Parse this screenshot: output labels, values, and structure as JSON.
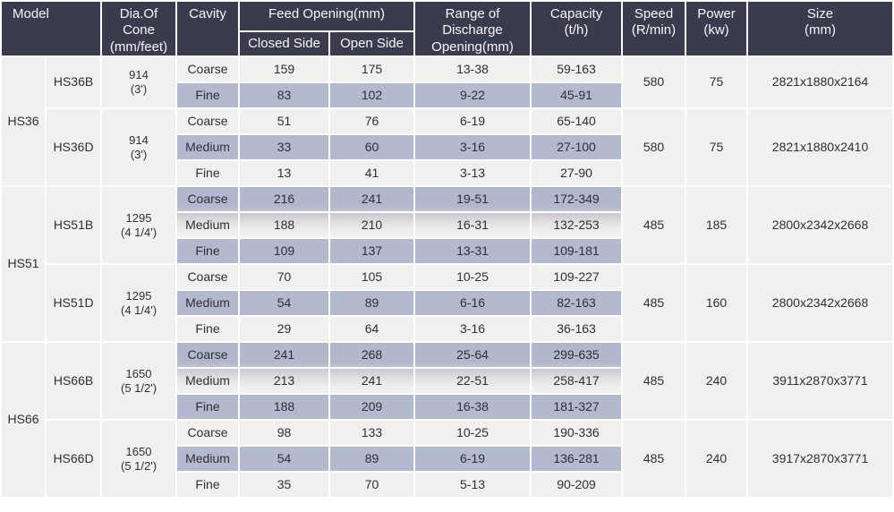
{
  "colors": {
    "header_bg": "#3b3b4e",
    "header_text": "#f7f7f7",
    "row_light": "#f0f0ee",
    "row_highlight": "#b3b9ce",
    "body_text": "#2f2f35"
  },
  "header": {
    "model": "Model",
    "dia": "Dia.Of\nCone\n(mm/feet)",
    "cavity": "Cavity",
    "feed_opening": "Feed Opening(mm)",
    "closed_side": "Closed Side",
    "open_side": "Open Side",
    "range": "Range of\nDischarge\nOpening(mm)",
    "capacity": "Capacity\n(t/h)",
    "speed": "Speed\n(R/min)",
    "power": "Power\n(kw)",
    "size": "Size\n(mm)"
  },
  "groups": [
    {
      "model": "HS36",
      "variants": [
        {
          "name": "HS36B",
          "dia": "914\n(3')",
          "speed": "580",
          "power": "75",
          "size": "2821x1880x2164",
          "rows": [
            {
              "cavity": "Coarse",
              "closed": "159",
              "open": "175",
              "range": "13-38",
              "capacity": "59-163"
            },
            {
              "cavity": "Fine",
              "closed": "83",
              "open": "102",
              "range": "9-22",
              "capacity": "45-91"
            }
          ]
        },
        {
          "name": "HS36D",
          "dia": "914\n(3')",
          "speed": "580",
          "power": "75",
          "size": "2821x1880x2410",
          "rows": [
            {
              "cavity": "Coarse",
              "closed": "51",
              "open": "76",
              "range": "6-19",
              "capacity": "65-140"
            },
            {
              "cavity": "Medium",
              "closed": "33",
              "open": "60",
              "range": "3-16",
              "capacity": "27-100"
            },
            {
              "cavity": "Fine",
              "closed": "13",
              "open": "41",
              "range": "3-13",
              "capacity": "27-90"
            }
          ]
        }
      ]
    },
    {
      "model": "HS51",
      "variants": [
        {
          "name": "HS51B",
          "dia": "1295\n(4 1/4')",
          "speed": "485",
          "power": "185",
          "size": "2800x2342x2668",
          "rows": [
            {
              "cavity": "Coarse",
              "closed": "216",
              "open": "241",
              "range": "19-51",
              "capacity": "172-349"
            },
            {
              "cavity": "Medium",
              "closed": "188",
              "open": "210",
              "range": "16-31",
              "capacity": "132-253"
            },
            {
              "cavity": "Fine",
              "closed": "109",
              "open": "137",
              "range": "13-31",
              "capacity": "109-181"
            }
          ]
        },
        {
          "name": "HS51D",
          "dia": "1295\n(4 1/4')",
          "speed": "485",
          "power": "160",
          "size": "2800x2342x2668",
          "rows": [
            {
              "cavity": "Coarse",
              "closed": "70",
              "open": "105",
              "range": "10-25",
              "capacity": "109-227"
            },
            {
              "cavity": "Medium",
              "closed": "54",
              "open": "89",
              "range": "6-16",
              "capacity": "82-163"
            },
            {
              "cavity": "Fine",
              "closed": "29",
              "open": "64",
              "range": "3-16",
              "capacity": "36-163"
            }
          ]
        }
      ]
    },
    {
      "model": "HS66",
      "variants": [
        {
          "name": "HS66B",
          "dia": "1650\n(5 1/2')",
          "speed": "485",
          "power": "240",
          "size": "3911x2870x3771",
          "rows": [
            {
              "cavity": "Coarse",
              "closed": "241",
              "open": "268",
              "range": "25-64",
              "capacity": "299-635"
            },
            {
              "cavity": "Medium",
              "closed": "213",
              "open": "241",
              "range": "22-51",
              "capacity": "258-417"
            },
            {
              "cavity": "Fine",
              "closed": "188",
              "open": "209",
              "range": "16-38",
              "capacity": "181-327"
            }
          ]
        },
        {
          "name": "HS66D",
          "dia": "1650\n(5 1/2')",
          "speed": "485",
          "power": "240",
          "size": "3917x2870x3771",
          "rows": [
            {
              "cavity": "Coarse",
              "closed": "98",
              "open": "133",
              "range": "10-25",
              "capacity": "190-336"
            },
            {
              "cavity": "Medium",
              "closed": "54",
              "open": "89",
              "range": "6-19",
              "capacity": "136-281"
            },
            {
              "cavity": "Fine",
              "closed": "35",
              "open": "70",
              "range": "5-13",
              "capacity": "90-209"
            }
          ]
        }
      ]
    }
  ]
}
